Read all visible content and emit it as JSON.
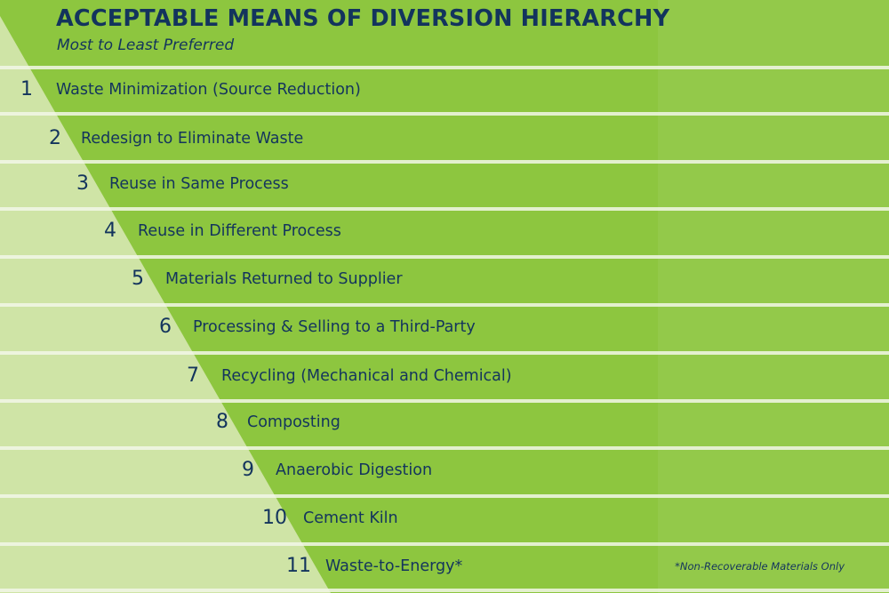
{
  "title": "ACCEPTABLE MEANS OF DIVERSION HIERARCHY",
  "subtitle": "Most to Least Preferred",
  "colors": {
    "green": "#8dc63f",
    "green_right": "#93c94a",
    "pale_green": "#cfe4a6",
    "separator": "#f2f7e8",
    "navy": "#13345d"
  },
  "items": [
    {
      "num": "1",
      "label": "Waste Minimization (Source Reduction)"
    },
    {
      "num": "2",
      "label": "Redesign to Eliminate Waste"
    },
    {
      "num": "3",
      "label": "Reuse in Same Process"
    },
    {
      "num": "4",
      "label": "Reuse in Different Process"
    },
    {
      "num": "5",
      "label": "Materials Returned to Supplier"
    },
    {
      "num": "6",
      "label": "Processing & Selling to a Third-Party"
    },
    {
      "num": "7",
      "label": "Recycling (Mechanical and Chemical)"
    },
    {
      "num": "8",
      "label": "Composting"
    },
    {
      "num": "9",
      "label": "Anaerobic Digestion"
    },
    {
      "num": "10",
      "label": "Cement Kiln"
    },
    {
      "num": "11",
      "label": "Waste-to-Energy*"
    }
  ],
  "footnote": "*Non-Recoverable Materials Only"
}
